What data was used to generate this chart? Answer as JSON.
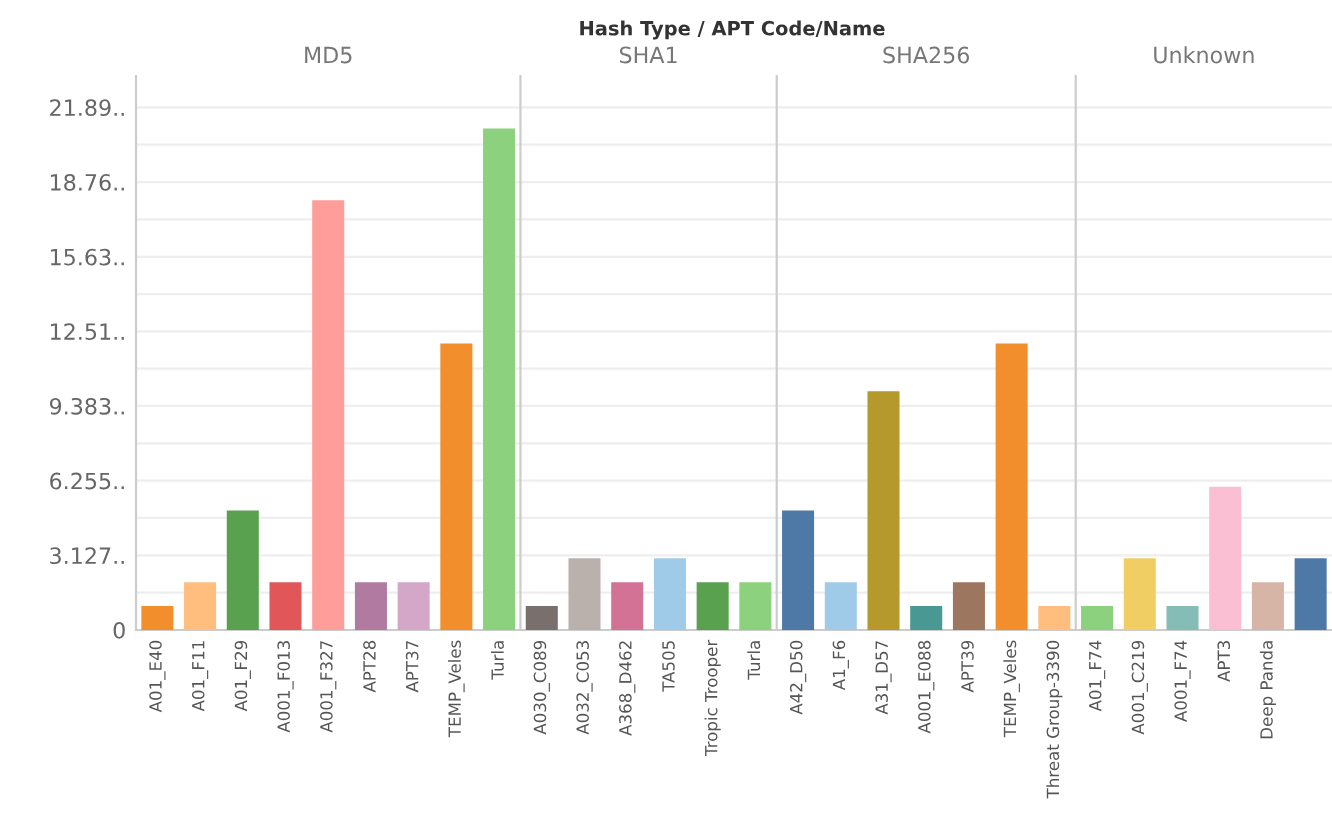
{
  "chart_data": [
    {
      "type": "bar",
      "title": "MD5",
      "annotations": [
        "Hash Type / APT Code/Name"
      ],
      "categories": [
        "A01_E40",
        "A01_F11",
        "A01_F29",
        "A001_F013",
        "A001_F327",
        "APT28",
        "APT37",
        "TEMP_Veles",
        "Turla"
      ],
      "values": [
        1,
        2,
        5,
        2,
        18,
        2,
        2,
        12,
        21
      ],
      "colors": [
        "#f28e2b",
        "#ffbe7d",
        "#59a14f",
        "#e15759",
        "#ff9d9a",
        "#b07aa1",
        "#d4a6c8",
        "#f28e2b",
        "#8cd17d"
      ],
      "ylim": [
        0,
        23.2
      ],
      "yticks": [
        0,
        {
          "value": 1.564,
          "label": null
        },
        {
          "value": 3.127,
          "label": "3.127.."
        },
        {
          "value": 4.691,
          "label": null
        },
        {
          "value": 6.255,
          "label": "6.255.."
        },
        {
          "value": 7.819,
          "label": null
        },
        {
          "value": 9.383,
          "label": "9.383.."
        },
        {
          "value": 10.95,
          "label": null
        },
        {
          "value": 12.51,
          "label": "12.51.."
        },
        {
          "value": 14.07,
          "label": null
        },
        {
          "value": 15.63,
          "label": "15.63.."
        },
        {
          "value": 17.2,
          "label": null
        },
        {
          "value": 18.76,
          "label": "18.76.."
        },
        {
          "value": 20.33,
          "label": null
        },
        {
          "value": 21.89,
          "label": "21.89.."
        }
      ],
      "grid": "y"
    },
    {
      "type": "bar",
      "title": "SHA1",
      "categories": [
        "A030_C089",
        "A032_C053",
        "A368_D462",
        "TA505",
        "Tropic Trooper",
        "Turla"
      ],
      "values": [
        1,
        3,
        2,
        3,
        2,
        2
      ],
      "colors": [
        "#79706e",
        "#bab0ac",
        "#d37295",
        "#a0cbe8",
        "#59a14f",
        "#8cd17d"
      ],
      "ylim": [
        0,
        23.2
      ],
      "tick_labels": "x",
      "grid": "y"
    },
    {
      "type": "bar",
      "title": "SHA256",
      "categories": [
        "A42_D50",
        "A1_F6",
        "A31_D57",
        "A001_E088",
        "APT39",
        "TEMP_Veles",
        "Threat Group-3390"
      ],
      "values": [
        5,
        2,
        10,
        1,
        2,
        12,
        1
      ],
      "colors": [
        "#4e79a7",
        "#a0cbe8",
        "#b6992d",
        "#499894",
        "#9d7660",
        "#f28e2b",
        "#ffbe7d"
      ],
      "ylim": [
        0,
        23.2
      ],
      "tick_labels": "x",
      "grid": "y"
    },
    {
      "type": "bar",
      "title": "Unknown",
      "categories": [
        "A01_F74",
        "A001_C219",
        "A001_F74",
        "APT3",
        "Deep Panda",
        null
      ],
      "values": [
        1,
        3,
        1,
        6,
        2,
        3
      ],
      "colors": [
        "#8cd17d",
        "#f1ce63",
        "#86bcb6",
        "#fabfd2",
        "#d7b5a6",
        "#4e79a7"
      ],
      "ylim": [
        0,
        23.2
      ],
      "tick_labels": "x",
      "grid": "y"
    }
  ]
}
